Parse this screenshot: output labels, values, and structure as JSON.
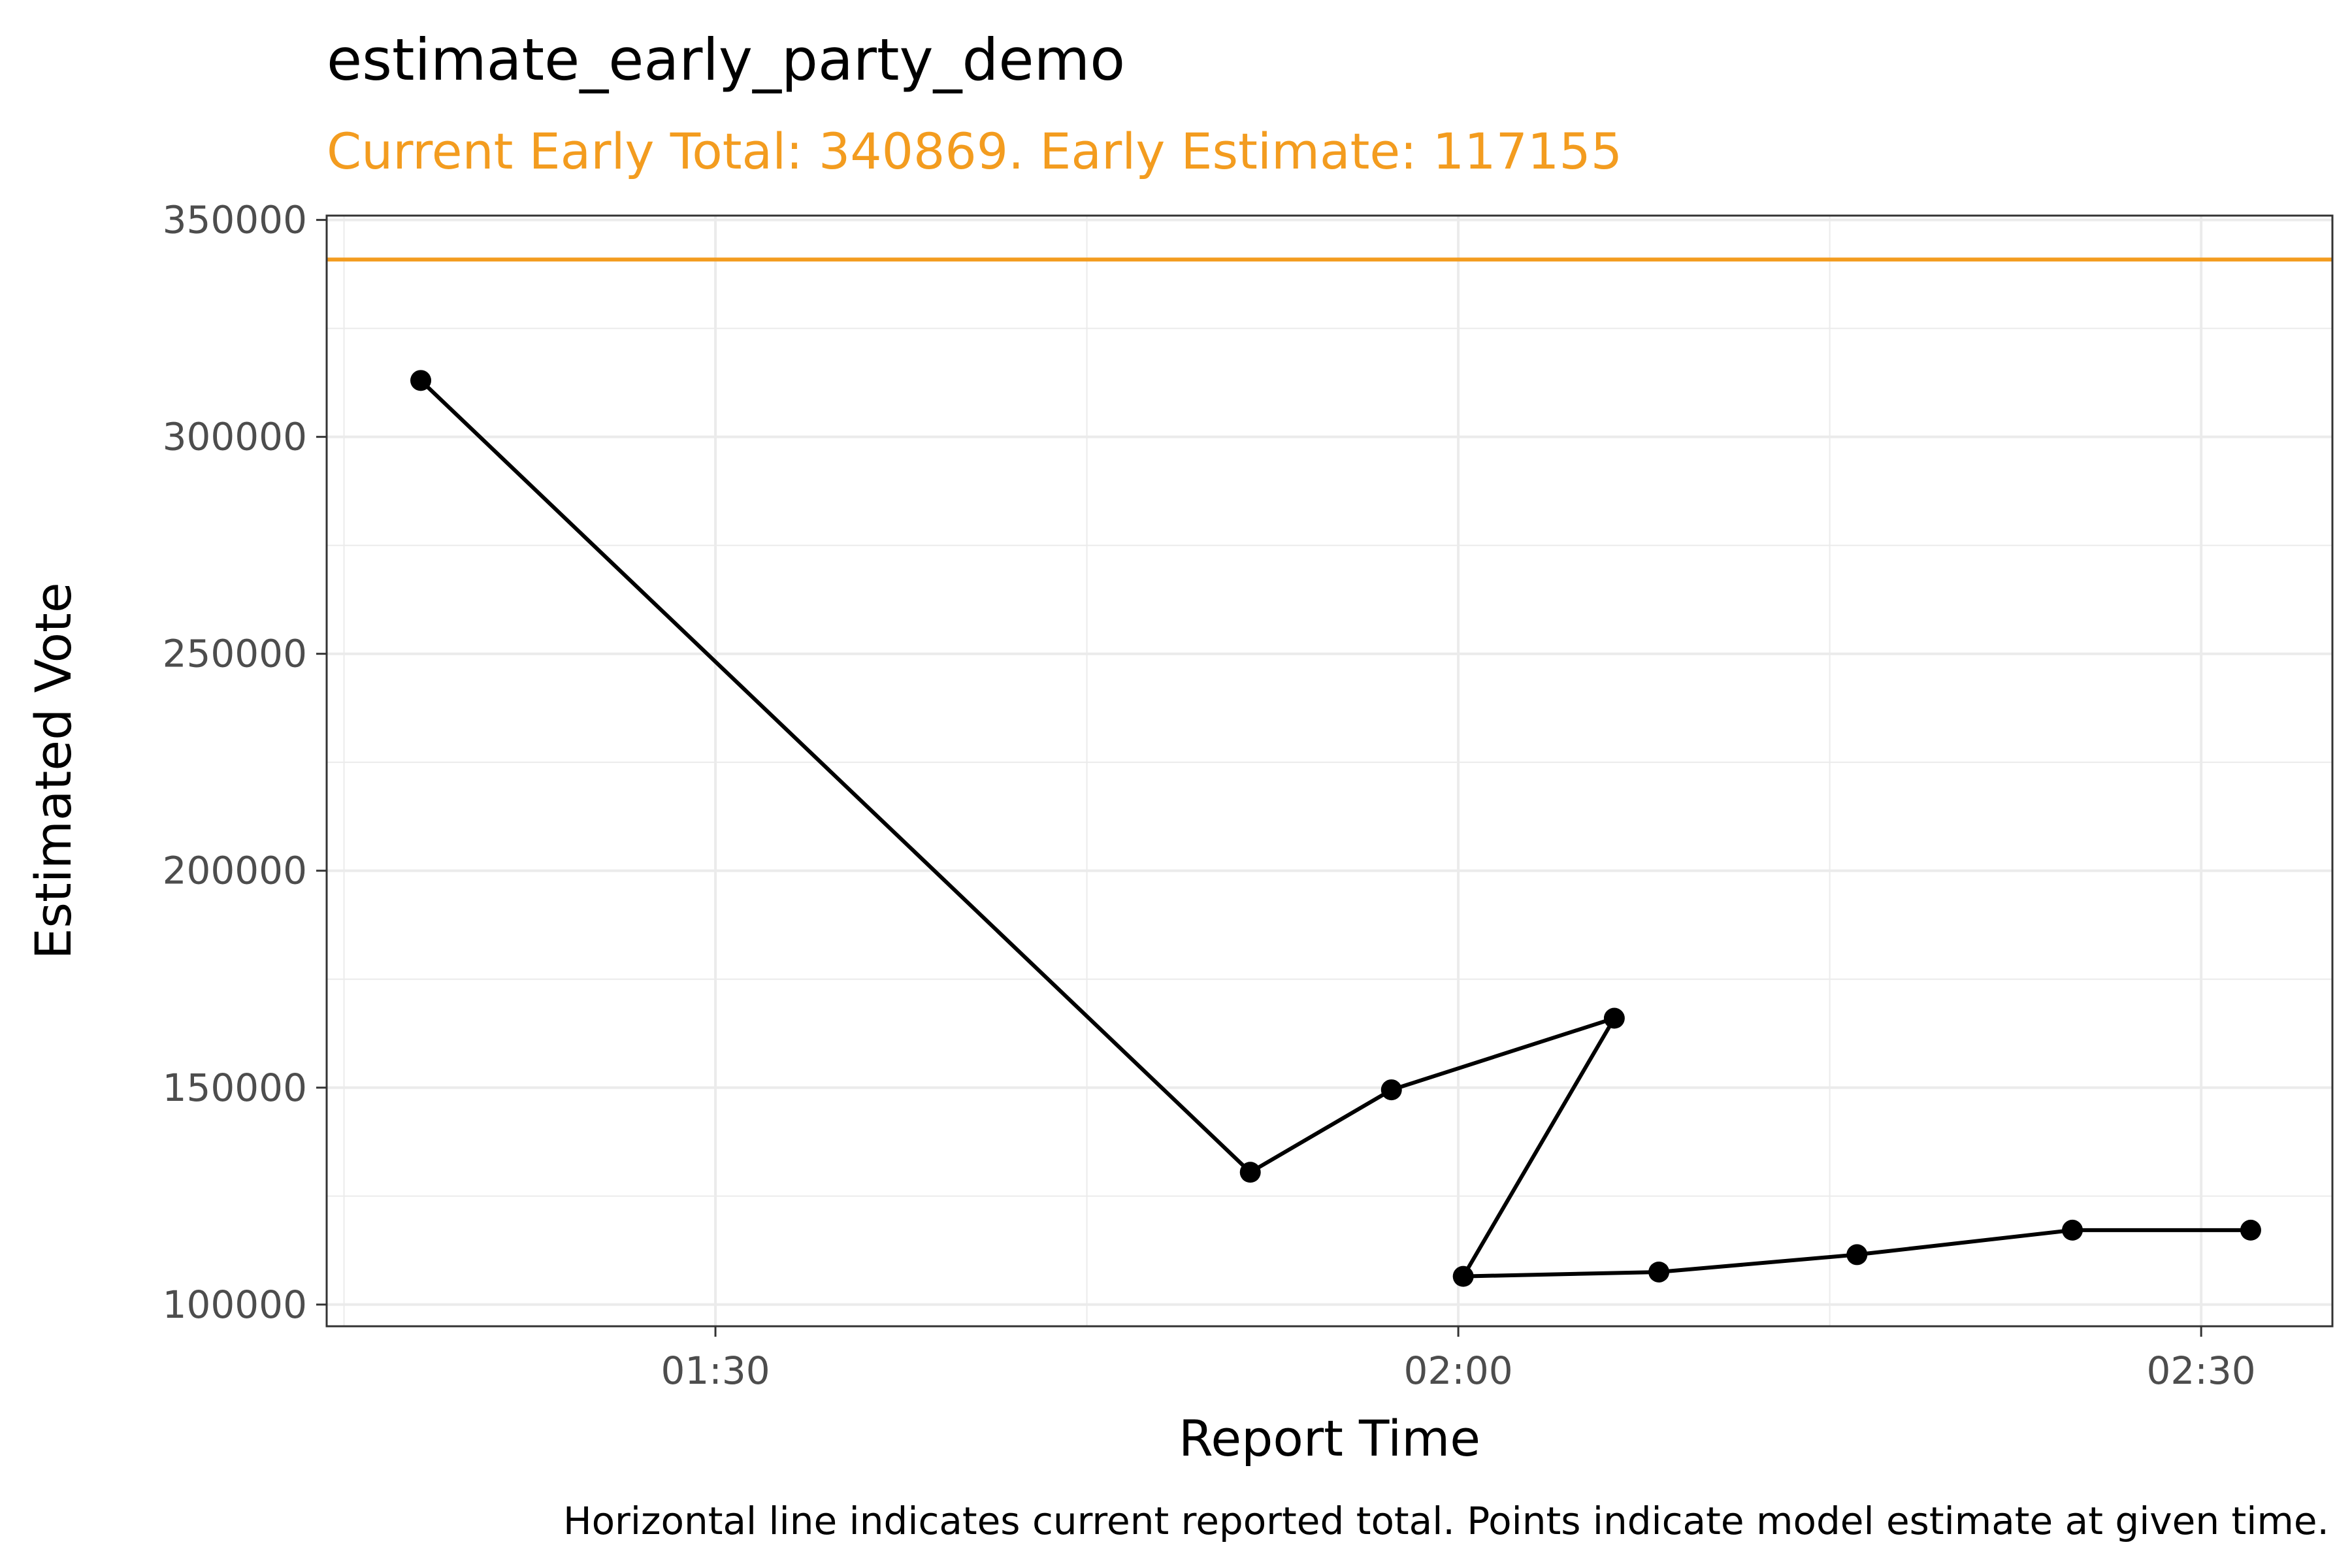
{
  "chart_data": {
    "type": "line",
    "title": "estimate_early_party_demo",
    "subtitle": "Current Early Total: 340869. Early Estimate: 117155",
    "xlabel": "Report Time",
    "ylabel": "Estimated Vote",
    "caption": "Horizontal line indicates current reported total. Points indicate model estimate at given time.",
    "x_tick_labels": [
      "01:30",
      "02:00",
      "02:30"
    ],
    "x_tick_minutes": [
      90,
      120,
      150
    ],
    "y_ticks": [
      100000,
      150000,
      200000,
      250000,
      300000,
      350000
    ],
    "y_tick_labels": [
      "100000",
      "150000",
      "200000",
      "250000",
      "300000",
      "350000"
    ],
    "xlim_minutes": [
      74.3,
      155.3
    ],
    "ylim": [
      95000,
      351000
    ],
    "reference_line": {
      "value": 340869,
      "color": "#F39C1F"
    },
    "series": [
      {
        "color": "#000000",
        "x_minutes": [
          78.1,
          111.6,
          117.3,
          126.3,
          120.2,
          128.1,
          136.1,
          144.8,
          152.0
        ],
        "x": [
          "01:18",
          "01:51",
          "01:57",
          "02:06",
          "02:00",
          "02:08",
          "02:16",
          "02:24",
          "02:32"
        ],
        "values": [
          313000,
          130500,
          149500,
          166000,
          106500,
          107500,
          111500,
          117155,
          117155
        ]
      }
    ],
    "grid": true,
    "legend": "none"
  },
  "colors": {
    "accent": "#F39C1F",
    "grid": "#EBEBEB",
    "panel_border": "#333333"
  }
}
